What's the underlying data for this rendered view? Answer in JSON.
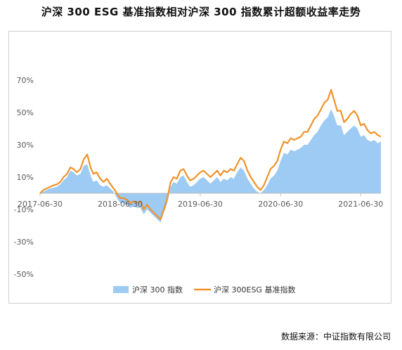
{
  "title": "沪深 300 ESG 基准指数相对沪深 300 指数累计超额收益率走势",
  "source": "数据来源：中证指数有限公司",
  "colors": {
    "area": "#9dcbf3",
    "line": "#f0922b",
    "axis": "#bfbfbf",
    "text": "#595959"
  },
  "chart_data": {
    "type": "line",
    "y_format": "percent",
    "ylim": [
      -50,
      70
    ],
    "y_ticks": [
      70,
      50,
      30,
      10,
      -10,
      -30,
      -50
    ],
    "y_tick_labels": [
      "70%",
      "50%",
      "30%",
      "10%",
      "-10%",
      "-30%",
      "-50%"
    ],
    "x_range": [
      "2017-06-30",
      "2021-09-30"
    ],
    "x_ticks": [
      "2017-06-30",
      "2018-06-30",
      "2019-06-30",
      "2020-06-30",
      "2021-06-30"
    ],
    "x_tick_labels": [
      "2017-06-30",
      "2018-06-30",
      "2019-06-30",
      "2020-06-30",
      "2021-06-30"
    ],
    "legend_position": "bottom",
    "grid": false,
    "x": [
      "2017-06-30",
      "2017-07-15",
      "2017-07-31",
      "2017-08-15",
      "2017-08-31",
      "2017-09-15",
      "2017-09-30",
      "2017-10-15",
      "2017-10-31",
      "2017-11-15",
      "2017-11-30",
      "2017-12-15",
      "2017-12-31",
      "2018-01-15",
      "2018-01-31",
      "2018-02-15",
      "2018-02-28",
      "2018-03-15",
      "2018-03-31",
      "2018-04-15",
      "2018-04-30",
      "2018-05-15",
      "2018-05-31",
      "2018-06-15",
      "2018-06-30",
      "2018-07-15",
      "2018-07-31",
      "2018-08-15",
      "2018-08-31",
      "2018-09-15",
      "2018-09-30",
      "2018-10-15",
      "2018-10-31",
      "2018-11-15",
      "2018-11-30",
      "2018-12-15",
      "2018-12-31",
      "2019-01-15",
      "2019-01-31",
      "2019-02-15",
      "2019-02-28",
      "2019-03-15",
      "2019-03-31",
      "2019-04-15",
      "2019-04-30",
      "2019-05-15",
      "2019-05-31",
      "2019-06-15",
      "2019-06-30",
      "2019-07-15",
      "2019-07-31",
      "2019-08-15",
      "2019-08-31",
      "2019-09-15",
      "2019-09-30",
      "2019-10-15",
      "2019-10-31",
      "2019-11-15",
      "2019-11-30",
      "2019-12-15",
      "2019-12-31",
      "2020-01-15",
      "2020-01-31",
      "2020-02-15",
      "2020-02-29",
      "2020-03-15",
      "2020-03-31",
      "2020-04-15",
      "2020-04-30",
      "2020-05-15",
      "2020-05-31",
      "2020-06-15",
      "2020-06-30",
      "2020-07-15",
      "2020-07-31",
      "2020-08-15",
      "2020-08-31",
      "2020-09-15",
      "2020-09-30",
      "2020-10-15",
      "2020-10-31",
      "2020-11-15",
      "2020-11-30",
      "2020-12-15",
      "2020-12-31",
      "2021-01-15",
      "2021-01-31",
      "2021-02-15",
      "2021-02-28",
      "2021-03-15",
      "2021-03-31",
      "2021-04-15",
      "2021-04-30",
      "2021-05-15",
      "2021-05-31",
      "2021-06-15",
      "2021-06-30",
      "2021-07-15",
      "2021-07-31",
      "2021-08-15",
      "2021-08-31",
      "2021-09-15",
      "2021-09-30"
    ],
    "series": [
      {
        "name": "沪深 300 指数",
        "style": "area",
        "values": [
          0,
          1,
          2,
          3,
          3.5,
          4,
          5.5,
          8,
          10,
          14,
          13,
          11,
          12,
          17,
          18,
          11,
          7,
          8,
          5,
          4,
          5,
          3,
          1,
          -3,
          -6,
          -6,
          -7,
          -9,
          -8,
          -9,
          -9,
          -13,
          -10,
          -12,
          -14,
          -16,
          -18,
          -12,
          -6,
          4,
          7,
          6,
          10,
          11,
          7,
          4,
          5,
          7,
          9,
          10,
          8,
          6,
          8,
          10,
          7,
          9,
          8,
          10,
          9,
          13,
          16,
          14,
          9,
          6,
          3,
          1,
          0,
          2,
          5,
          9,
          11,
          14,
          20,
          25,
          24,
          27,
          26,
          27,
          28,
          30,
          30,
          33,
          36,
          38,
          42,
          45,
          47,
          52,
          48,
          42,
          42,
          36,
          38,
          40,
          42,
          40,
          35,
          36,
          33,
          32,
          33,
          31,
          32
        ]
      },
      {
        "name": "沪深 300ESG 基准指数",
        "style": "line",
        "values": [
          0,
          2,
          3,
          4,
          5,
          5.5,
          7,
          10,
          12,
          16,
          15,
          13,
          15,
          21,
          24,
          16,
          12,
          13,
          9,
          7,
          9,
          6,
          3,
          0,
          -3,
          -3,
          -4,
          -6,
          -5,
          -6,
          -5,
          -10,
          -7,
          -10,
          -12,
          -14,
          -16,
          -10,
          -3,
          7,
          10,
          9,
          14,
          15,
          11,
          8,
          9,
          11,
          13,
          14,
          12,
          10,
          12,
          14,
          11,
          14,
          13,
          15,
          14,
          18,
          22,
          20,
          14,
          10,
          7,
          4,
          2,
          5,
          10,
          15,
          17,
          20,
          27,
          32,
          31,
          34,
          33,
          34,
          35,
          38,
          38,
          42,
          46,
          48,
          52,
          56,
          58,
          64,
          58,
          51,
          51,
          44,
          46,
          49,
          51,
          48,
          42,
          43,
          39,
          37,
          38,
          36,
          35
        ]
      }
    ]
  }
}
